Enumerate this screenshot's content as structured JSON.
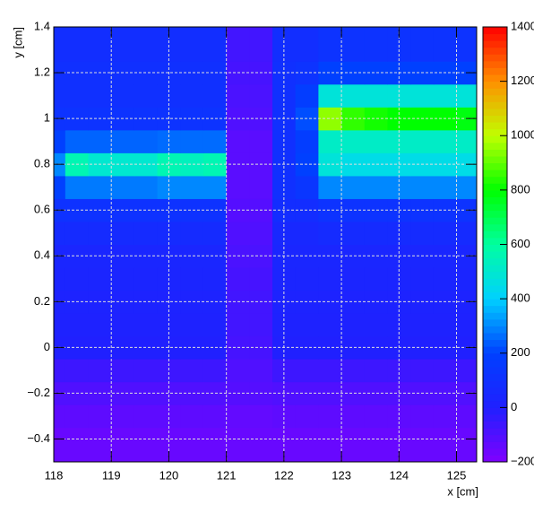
{
  "chart_data": {
    "type": "heatmap",
    "xlabel": "x [cm]",
    "ylabel": "y [cm]",
    "xlim": [
      118,
      125.35
    ],
    "ylim": [
      -0.5,
      1.4
    ],
    "xticks": [
      118,
      119,
      120,
      121,
      122,
      123,
      124,
      125
    ],
    "yticks": [
      {
        "value": -0.4,
        "label": "−0.4"
      },
      {
        "value": -0.2,
        "label": "−0.2"
      },
      0,
      0.2,
      0.4,
      0.6,
      0.8,
      1,
      1.2,
      1.4
    ],
    "zlim": [
      -200,
      1400
    ],
    "zticks": [
      {
        "value": -200,
        "label": "−200"
      },
      0,
      200,
      400,
      600,
      800,
      1000,
      1200,
      1400
    ],
    "colors": [
      "#8000ff",
      "#2020ff",
      "#0040ff",
      "#00d0ff",
      "#00ffa0",
      "#00ff00",
      "#c0ff00",
      "#ff9000",
      "#ff0000"
    ],
    "grid": true,
    "x_edges": [
      118,
      118.2,
      118.6,
      119.0,
      119.4,
      119.8,
      120.2,
      120.6,
      121.0,
      121.4,
      121.8,
      122.2,
      122.6,
      123.0,
      123.4,
      123.8,
      124.2,
      124.6,
      125.0,
      125.35
    ],
    "y_edges": [
      -0.5,
      -0.35,
      -0.25,
      -0.15,
      -0.05,
      0.05,
      0.15,
      0.25,
      0.35,
      0.45,
      0.55,
      0.65,
      0.75,
      0.85,
      0.95,
      1.05,
      1.15,
      1.25,
      1.4
    ],
    "z": [
      [
        -150,
        -150,
        -150,
        -150,
        -150,
        -150,
        -150,
        -150,
        -150,
        -150,
        -150,
        -150,
        -150,
        -150,
        -150,
        -150,
        -150,
        -150,
        -150
      ],
      [
        -130,
        -130,
        -130,
        -130,
        -130,
        -130,
        -130,
        -130,
        -140,
        -140,
        -130,
        -130,
        -130,
        -130,
        -130,
        -130,
        -130,
        -130,
        -130
      ],
      [
        -100,
        -100,
        -100,
        -100,
        -100,
        -100,
        -100,
        -100,
        -110,
        -110,
        -100,
        -100,
        -100,
        -100,
        -100,
        -100,
        -100,
        -100,
        -100
      ],
      [
        -60,
        -60,
        -60,
        -60,
        -60,
        -60,
        -60,
        -60,
        -100,
        -100,
        -60,
        -60,
        -60,
        -60,
        -60,
        -60,
        -60,
        -60,
        -60
      ],
      [
        0,
        0,
        0,
        0,
        0,
        0,
        0,
        0,
        -80,
        -80,
        0,
        0,
        0,
        0,
        0,
        0,
        0,
        0,
        0
      ],
      [
        10,
        10,
        10,
        10,
        10,
        10,
        10,
        10,
        -70,
        -70,
        10,
        10,
        10,
        10,
        10,
        10,
        10,
        10,
        10
      ],
      [
        20,
        20,
        20,
        20,
        20,
        20,
        20,
        20,
        -70,
        -70,
        20,
        20,
        20,
        20,
        20,
        20,
        20,
        20,
        20
      ],
      [
        30,
        30,
        30,
        30,
        30,
        30,
        30,
        30,
        -80,
        -80,
        30,
        30,
        30,
        30,
        30,
        30,
        30,
        30,
        30
      ],
      [
        40,
        40,
        40,
        40,
        40,
        40,
        40,
        40,
        -90,
        -90,
        40,
        40,
        40,
        40,
        40,
        40,
        40,
        40,
        40
      ],
      [
        70,
        70,
        70,
        70,
        70,
        70,
        70,
        70,
        -100,
        -100,
        50,
        50,
        70,
        70,
        70,
        70,
        70,
        70,
        70
      ],
      [
        110,
        110,
        110,
        110,
        110,
        110,
        110,
        110,
        -110,
        -110,
        80,
        80,
        120,
        120,
        120,
        120,
        120,
        120,
        120
      ],
      [
        200,
        280,
        280,
        280,
        280,
        300,
        300,
        300,
        -120,
        -120,
        100,
        140,
        300,
        300,
        300,
        300,
        300,
        300,
        300
      ],
      [
        300,
        560,
        500,
        500,
        500,
        560,
        540,
        560,
        -120,
        -120,
        100,
        200,
        480,
        450,
        450,
        450,
        450,
        450,
        450
      ],
      [
        200,
        250,
        250,
        250,
        250,
        260,
        260,
        260,
        -120,
        -120,
        100,
        180,
        520,
        520,
        520,
        520,
        520,
        520,
        520
      ],
      [
        120,
        120,
        120,
        120,
        120,
        120,
        120,
        120,
        -100,
        -100,
        100,
        220,
        950,
        850,
        820,
        800,
        800,
        800,
        780
      ],
      [
        100,
        100,
        100,
        100,
        100,
        100,
        100,
        100,
        -90,
        -90,
        100,
        180,
        480,
        480,
        480,
        480,
        480,
        480,
        480
      ],
      [
        100,
        100,
        100,
        100,
        100,
        100,
        100,
        100,
        -80,
        -80,
        100,
        120,
        200,
        200,
        200,
        200,
        200,
        200,
        200
      ],
      [
        90,
        90,
        90,
        90,
        90,
        90,
        90,
        90,
        -70,
        -70,
        90,
        90,
        120,
        120,
        120,
        120,
        120,
        120,
        120
      ]
    ]
  }
}
